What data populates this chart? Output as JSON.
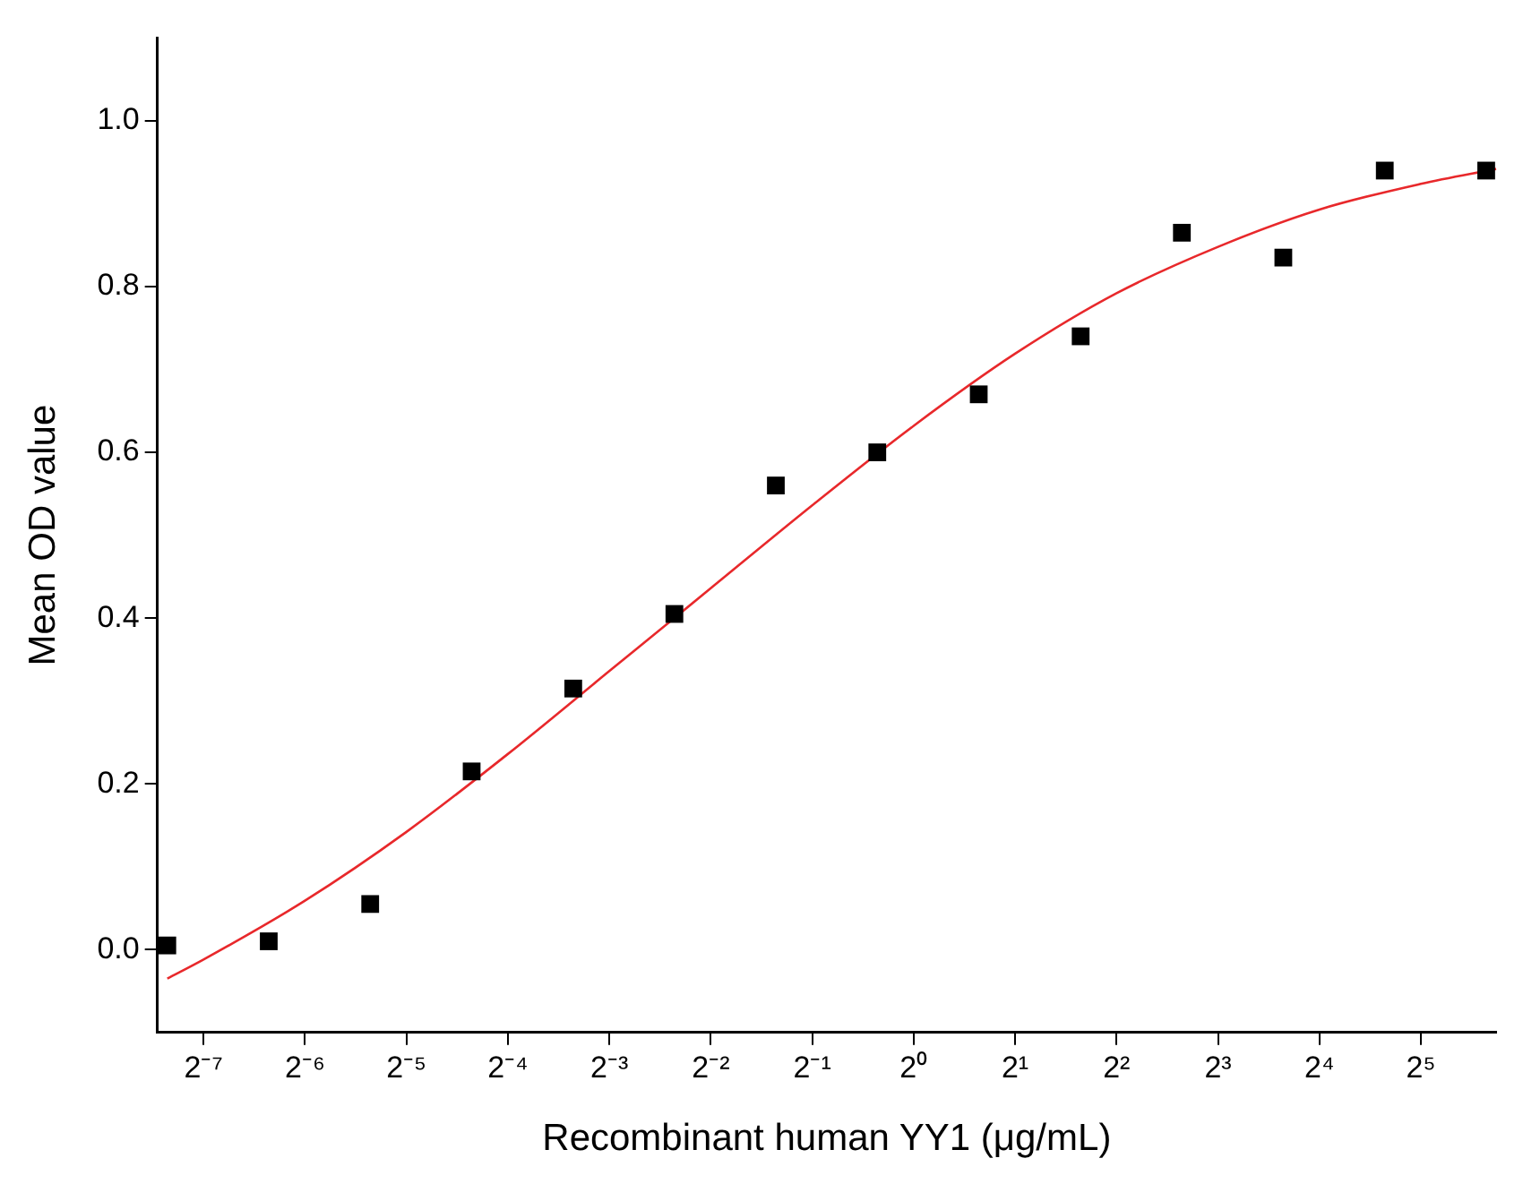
{
  "chart_data": {
    "type": "scatter",
    "xlabel": "Recombinant human YY1 (μg/mL)",
    "ylabel": "Mean OD value",
    "log": "x",
    "grid": false,
    "xlim": [
      0.0057,
      53.5
    ],
    "ylim": [
      -0.1,
      1.1
    ],
    "xticks": [
      {
        "value": 0.0078125,
        "label": "2⁻⁷"
      },
      {
        "value": 0.015625,
        "label": "2⁻⁶"
      },
      {
        "value": 0.03125,
        "label": "2⁻⁵"
      },
      {
        "value": 0.0625,
        "label": "2⁻⁴"
      },
      {
        "value": 0.125,
        "label": "2⁻³"
      },
      {
        "value": 0.25,
        "label": "2⁻²"
      },
      {
        "value": 0.5,
        "label": "2⁻¹"
      },
      {
        "value": 1,
        "label": "2⁰"
      },
      {
        "value": 2,
        "label": "2¹"
      },
      {
        "value": 4,
        "label": "2²"
      },
      {
        "value": 8,
        "label": "2³"
      },
      {
        "value": 16,
        "label": "2⁴"
      },
      {
        "value": 32,
        "label": "2⁵"
      }
    ],
    "yticks": [
      {
        "value": 0,
        "label": "0.0"
      },
      {
        "value": 0.2,
        "label": "0.2"
      },
      {
        "value": 0.4,
        "label": "0.4"
      },
      {
        "value": 0.6,
        "label": "0.6"
      },
      {
        "value": 0.8,
        "label": "0.8"
      },
      {
        "value": 1,
        "label": "1.0"
      }
    ],
    "series": [
      {
        "color": "#000000",
        "marker": "square",
        "x": [
          0.0061,
          0.0122,
          0.0244,
          0.0488,
          0.0977,
          0.195,
          0.39,
          0.78,
          1.56,
          3.13,
          6.25,
          12.5,
          25,
          50
        ],
        "values": [
          0.005,
          0.01,
          0.055,
          0.215,
          0.315,
          0.405,
          0.56,
          0.6,
          0.67,
          0.74,
          0.865,
          0.835,
          0.94,
          0.94
        ]
      },
      {
        "type": "line",
        "color": "#e8282b",
        "marker": "none",
        "x": [
          0.0061,
          0.0078125,
          0.015625,
          0.03125,
          0.0625,
          0.125,
          0.25,
          0.5,
          1,
          2,
          4,
          8,
          16,
          32,
          53.5
        ],
        "values": [
          -0.035,
          -0.012,
          0.059,
          0.142,
          0.236,
          0.336,
          0.436,
          0.536,
          0.632,
          0.719,
          0.792,
          0.848,
          0.893,
          0.924,
          0.942
        ]
      }
    ]
  }
}
